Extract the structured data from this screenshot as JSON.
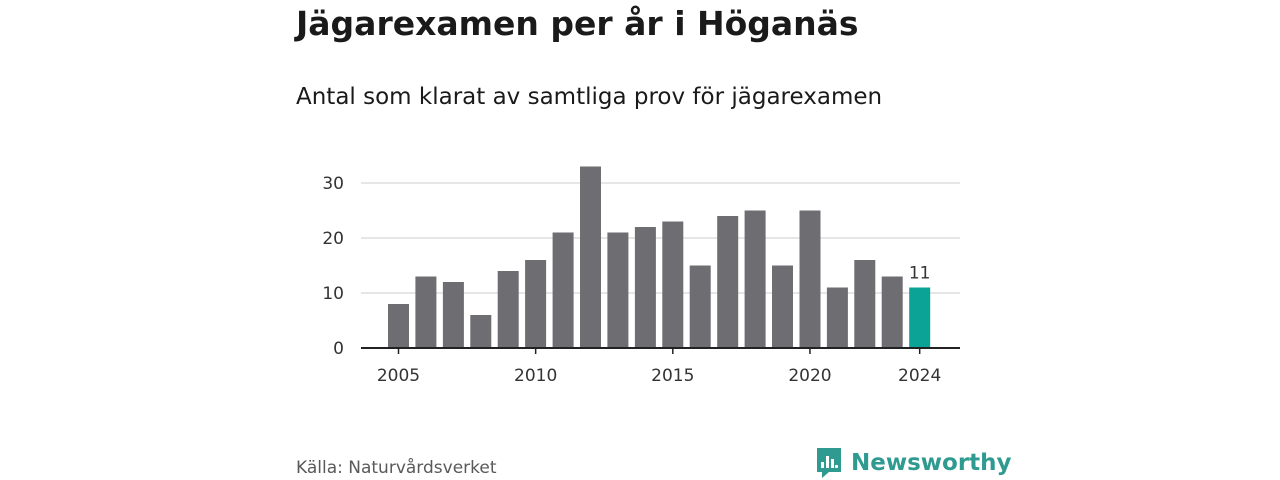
{
  "title": "Jägarexamen per år i Höganäs",
  "subtitle": "Antal som klarat av samtliga prov för jägarexamen",
  "source": "Källa: Naturvårdsverket",
  "brand": {
    "name": "Newsworthy",
    "icon": "newsworthy-logo-icon",
    "color": "#2f9a90"
  },
  "chart_data": {
    "type": "bar",
    "title": "Jägarexamen per år i Höganäs",
    "subtitle": "Antal som klarat av samtliga prov för jägarexamen",
    "categories": [
      "2005",
      "2006",
      "2007",
      "2008",
      "2009",
      "2010",
      "2011",
      "2012",
      "2013",
      "2014",
      "2015",
      "2016",
      "2017",
      "2018",
      "2019",
      "2020",
      "2021",
      "2022",
      "2023",
      "2024"
    ],
    "values": [
      8,
      13,
      12,
      6,
      14,
      16,
      21,
      33,
      21,
      22,
      23,
      15,
      24,
      25,
      15,
      25,
      11,
      16,
      13,
      11
    ],
    "ylim": [
      0,
      33
    ],
    "yticks": [
      0,
      10,
      20,
      30
    ],
    "xticks": [
      "2005",
      "2010",
      "2015",
      "2020",
      "2024"
    ],
    "highlight": {
      "category": "2024",
      "value": 11,
      "label": "11"
    },
    "grid": true,
    "colors": {
      "bar": "#6e6d72",
      "highlight": "#0aa396",
      "grid": "#dddddd",
      "axis": "#222222"
    }
  }
}
